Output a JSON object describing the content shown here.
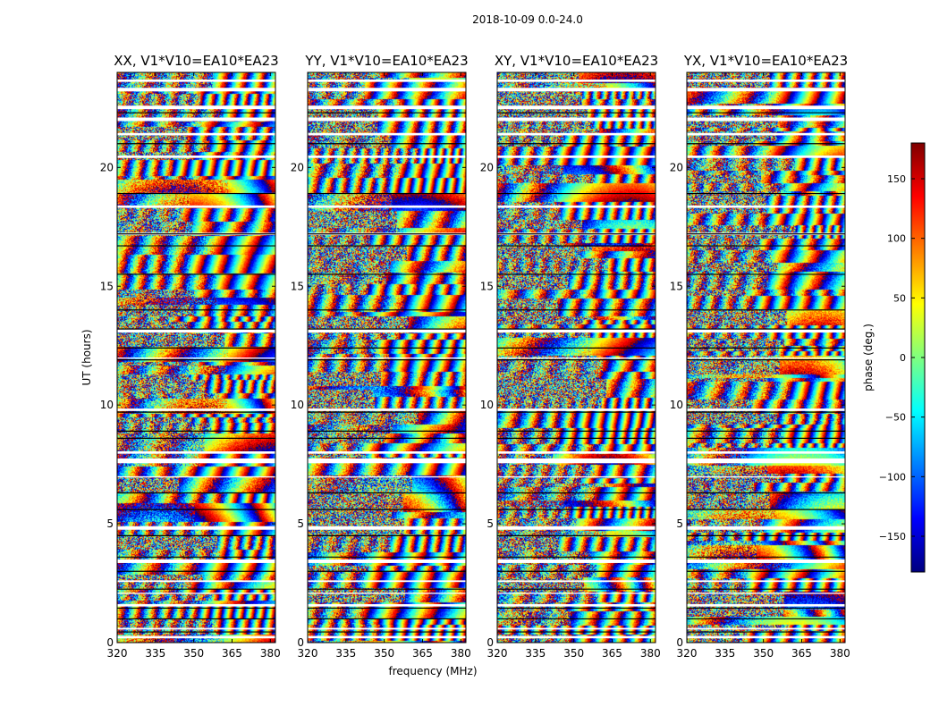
{
  "figure": {
    "suptitle": "2018-10-09 0.0-24.0"
  },
  "chart_data": {
    "type": "heatmap",
    "title": "2018-10-09 0.0-24.0",
    "xlabel": "frequency (MHz)",
    "ylabel": "UT (hours)",
    "xlim": [
      320,
      382
    ],
    "ylim": [
      0,
      24
    ],
    "xticks": [
      320,
      335,
      350,
      365,
      380
    ],
    "yticks": [
      0,
      5,
      10,
      15,
      20
    ],
    "panels": [
      {
        "title": "XX, V1*V10=EA10*EA23"
      },
      {
        "title": "YY, V1*V10=EA10*EA23"
      },
      {
        "title": "XY, V1*V10=EA10*EA23"
      },
      {
        "title": "YX, V1*V10=EA10*EA23"
      }
    ],
    "colorbar": {
      "label": "phase (deg.)",
      "range": [
        -180,
        180
      ],
      "ticks": [
        150,
        100,
        50,
        0,
        -50,
        -100,
        -150
      ],
      "tick_labels": [
        "150",
        "100",
        "50",
        "0",
        "−50",
        "−100",
        "−150"
      ],
      "colormap": "jet",
      "colors": [
        "#00007f",
        "#0000ff",
        "#007fff",
        "#00ffff",
        "#7fff7f",
        "#ffff00",
        "#ff7f00",
        "#ff0000",
        "#7f0000"
      ]
    },
    "flagged_gaps_hours": [
      [
        0.18,
        0.28
      ],
      [
        0.55,
        0.62
      ],
      [
        1.52,
        1.62
      ],
      [
        2.05,
        2.1
      ],
      [
        2.55,
        2.62
      ],
      [
        3.35,
        3.5
      ],
      [
        4.75,
        4.9
      ],
      [
        6.95,
        7.0
      ],
      [
        7.55,
        7.75
      ],
      [
        7.95,
        8.05
      ],
      [
        9.75,
        9.85
      ],
      [
        11.95,
        12.0
      ],
      [
        13.05,
        13.2
      ],
      [
        17.15,
        17.25
      ],
      [
        18.3,
        18.4
      ],
      [
        20.4,
        20.5
      ],
      [
        21.35,
        21.45
      ],
      [
        21.95,
        22.1
      ],
      [
        22.45,
        22.6
      ],
      [
        23.2,
        23.35
      ],
      [
        23.6,
        23.7
      ]
    ],
    "scan_boundaries_hours": [
      0.45,
      1.0,
      1.45,
      2.25,
      3.0,
      3.6,
      4.5,
      5.6,
      6.3,
      8.6,
      8.9,
      9.7,
      11.9,
      12.4,
      13.2,
      14.0,
      15.5,
      16.7,
      17.2,
      18.9,
      21.0,
      22.3
    ]
  }
}
